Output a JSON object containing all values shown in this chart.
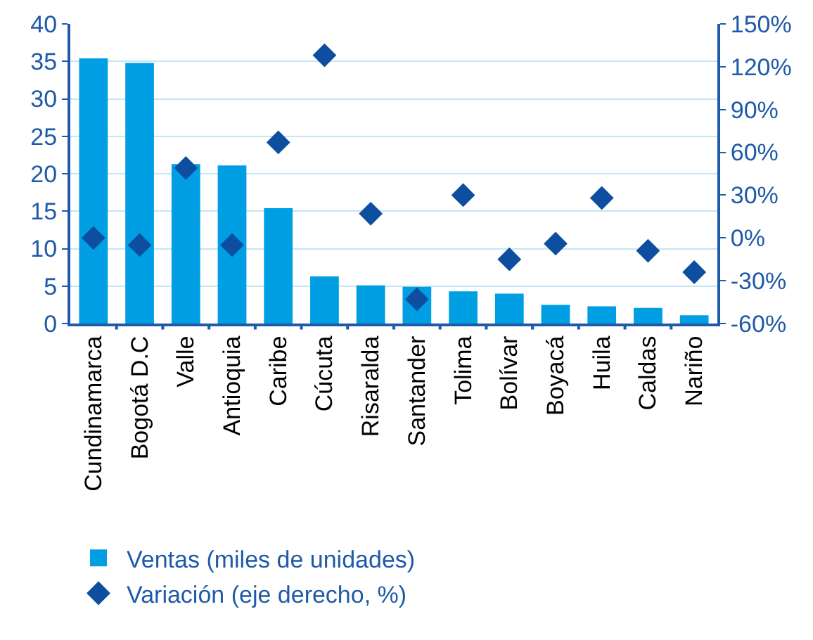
{
  "chart_data": {
    "type": "bar",
    "categories": [
      "Cundinamarca",
      "Bogotá D.C",
      "Valle",
      "Antioquia",
      "Caribe",
      "Cúcuta",
      "Risaralda",
      "Santander",
      "Tolima",
      "Bolívar",
      "Boyacá",
      "Huila",
      "Caldas",
      "Nariño"
    ],
    "series": [
      {
        "name": "Ventas (miles de unidades)",
        "color": "#009fe3",
        "values": [
          35.4,
          34.8,
          21.3,
          21.1,
          15.4,
          6.3,
          5.1,
          4.9,
          4.3,
          4.0,
          2.5,
          2.3,
          2.1,
          1.1
        ]
      },
      {
        "name": "Variación (eje derecho, %)",
        "type": "scatter",
        "axis": "y2",
        "color": "#0d4ea0",
        "marker": "diamond",
        "values": [
          0,
          -5,
          49,
          -5,
          67,
          128,
          17,
          -43,
          30,
          -15,
          -4,
          28,
          -9,
          -24
        ]
      }
    ],
    "ylim": [
      0,
      40
    ],
    "yticks": [
      0,
      5,
      10,
      15,
      20,
      25,
      30,
      35,
      40
    ],
    "y2lim": [
      -60,
      150
    ],
    "y2ticks": [
      {
        "value": -60,
        "label": "-60%"
      },
      {
        "value": -30,
        "label": "-30%"
      },
      {
        "value": 0,
        "label": "0%"
      },
      {
        "value": 30,
        "label": "30%"
      },
      {
        "value": 60,
        "label": "60%"
      },
      {
        "value": 90,
        "label": "90%"
      },
      {
        "value": 120,
        "label": "120%"
      },
      {
        "value": 150,
        "label": "150%"
      }
    ],
    "grid": "y",
    "legend": "bottom"
  }
}
